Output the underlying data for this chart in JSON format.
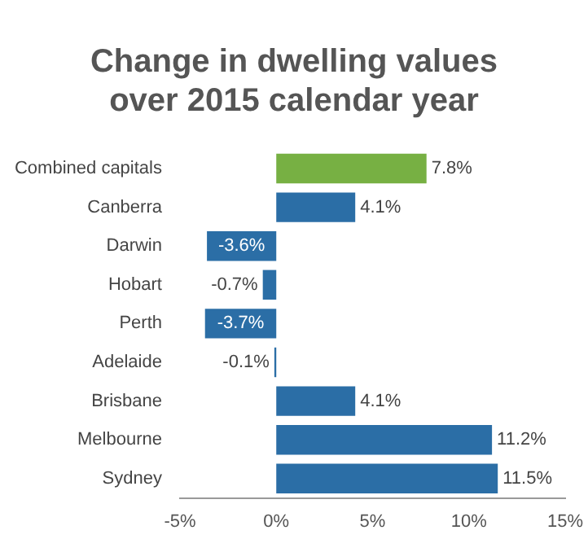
{
  "chart_data": {
    "type": "bar",
    "orientation": "horizontal",
    "title": "Change in dwelling values over 2015 calendar year",
    "categories": [
      "Combined capitals",
      "Canberra",
      "Darwin",
      "Hobart",
      "Perth",
      "Adelaide",
      "Brisbane",
      "Melbourne",
      "Sydney"
    ],
    "values": [
      7.8,
      4.1,
      -3.6,
      -0.7,
      -3.7,
      -0.1,
      4.1,
      11.2,
      11.5
    ],
    "colors": [
      "#77b043",
      "#2b6ea6",
      "#2b6ea6",
      "#2b6ea6",
      "#2b6ea6",
      "#2b6ea6",
      "#2b6ea6",
      "#2b6ea6",
      "#2b6ea6"
    ],
    "value_labels": [
      "7.8%",
      "4.1%",
      "-3.6%",
      "-0.7%",
      "-3.7%",
      "-0.1%",
      "4.1%",
      "11.2%",
      "11.5%"
    ],
    "xlim": [
      -5,
      15
    ],
    "xticks": [
      {
        "value": -5,
        "label": "-5%"
      },
      {
        "value": 0,
        "label": "0%"
      },
      {
        "value": 5,
        "label": "5%"
      },
      {
        "value": 10,
        "label": "10%"
      },
      {
        "value": 15,
        "label": "15%"
      }
    ],
    "grid": false,
    "legend": false
  }
}
